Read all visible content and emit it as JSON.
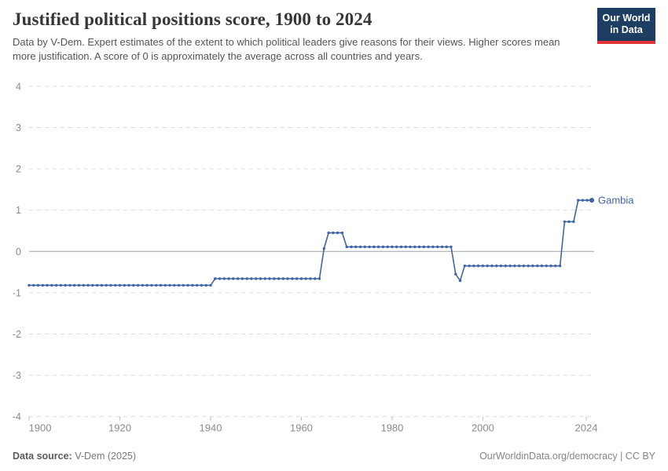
{
  "header": {
    "title": "Justified political positions score, 1900 to 2024",
    "subtitle": "Data by V-Dem. Expert estimates of the extent to which political leaders give reasons for their views. Higher scores mean more justification. A score of 0 is approximately the average across all countries and years.",
    "logo": {
      "line1": "Our World",
      "line2": "in Data"
    }
  },
  "footer": {
    "source_label": "Data source:",
    "source_value": " V-Dem (2025)",
    "credit": "OurWorldinData.org/democracy | CC BY"
  },
  "chart_data": {
    "type": "line",
    "title": "Justified political positions score, 1900 to 2024",
    "xlabel": "",
    "ylabel": "",
    "xlim": [
      1900,
      2024
    ],
    "ylim": [
      -4,
      4
    ],
    "x_ticks": [
      1900,
      1920,
      1940,
      1960,
      1980,
      2000,
      2024
    ],
    "y_ticks": [
      4,
      3,
      2,
      1,
      0,
      -1,
      -2,
      -3,
      -4
    ],
    "grid": "dashed-horizontal",
    "zero_line": true,
    "legend_position": "end-of-line-label",
    "series": [
      {
        "name": "Gambia",
        "color": "#4165a5",
        "runs": [
          {
            "from": 1900,
            "to": 1940,
            "value": -0.82
          },
          {
            "from": 1941,
            "to": 1964,
            "value": -0.66
          },
          {
            "from": 1965,
            "to": 1965,
            "value": 0.07
          },
          {
            "from": 1966,
            "to": 1969,
            "value": 0.45
          },
          {
            "from": 1970,
            "to": 1993,
            "value": 0.11
          },
          {
            "from": 1994,
            "to": 1994,
            "value": -0.55
          },
          {
            "from": 1995,
            "to": 1995,
            "value": -0.71
          },
          {
            "from": 1996,
            "to": 2017,
            "value": -0.35
          },
          {
            "from": 2018,
            "to": 2020,
            "value": 0.72
          },
          {
            "from": 2021,
            "to": 2024,
            "value": 1.24
          }
        ]
      }
    ],
    "colors": {
      "gridline": "#dcdcdc",
      "zero_line": "#a2a2a2",
      "axis_label": "#8a8a8a",
      "tick_mark": "#bdbdbd"
    }
  }
}
